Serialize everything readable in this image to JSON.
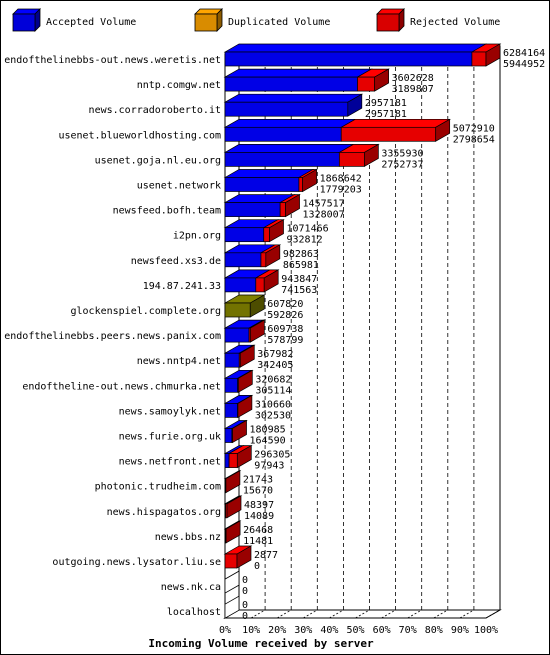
{
  "chart_data": {
    "type": "bar",
    "orientation": "horizontal",
    "stacked": true,
    "xlabel": "Incoming Volume received by server",
    "x_ticks": [
      "0%",
      "10%",
      "20%",
      "30%",
      "40%",
      "50%",
      "60%",
      "70%",
      "80%",
      "90%",
      "100%"
    ],
    "xlim": [
      0,
      6284164
    ],
    "grid": "vertical-dashed",
    "legend_position": "top",
    "legend": [
      {
        "key": "accepted",
        "label": "Accepted Volume",
        "color": "#0000ff"
      },
      {
        "key": "duplicated",
        "label": "Duplicated Volume",
        "color": "#ffa500"
      },
      {
        "key": "rejected",
        "label": "Rejected Volume",
        "color": "#ff0000"
      }
    ],
    "categories": [
      "endofthelinebbs-out.news.weretis.net",
      "nntp.comgw.net",
      "news.corradoroberto.it",
      "usenet.blueworldhosting.com",
      "usenet.goja.nl.eu.org",
      "usenet.network",
      "newsfeed.bofh.team",
      "i2pn.org",
      "newsfeed.xs3.de",
      "194.87.241.33",
      "glockenspiel.complete.org",
      "endofthelinebbs.peers.news.panix.com",
      "news.nntp4.net",
      "endoftheline-out.news.chmurka.net",
      "news.samoylyk.net",
      "news.furie.org.uk",
      "news.netfront.net",
      "photonic.trudheim.com",
      "news.hispagatos.org",
      "news.bbs.nz",
      "outgoing.news.lysator.liu.se",
      "news.nk.ca",
      "localhost"
    ],
    "total_labels": [
      "6284164",
      "3602628",
      "2957181",
      "5072910",
      "3355930",
      "1868642",
      "1457517",
      "1071466",
      "982863",
      "943847",
      "607820",
      "609738",
      "367982",
      "320682",
      "310660",
      "180985",
      "296305",
      "21743",
      "48397",
      "26468",
      "2877",
      "0",
      "0"
    ],
    "accepted_labels": [
      "5944952",
      "3189807",
      "2957181",
      "2798654",
      "2752737",
      "1779203",
      "1328007",
      "932812",
      "865981",
      "741563",
      "592826",
      "578799",
      "342405",
      "305114",
      "302530",
      "164590",
      "97943",
      "15670",
      "14089",
      "11481",
      "0",
      "0",
      "0"
    ],
    "series": [
      {
        "key": "accepted",
        "values": [
          5944952,
          3189807,
          2957181,
          2798654,
          2752737,
          1779203,
          1328007,
          932812,
          865981,
          741563,
          0,
          578799,
          342405,
          305114,
          302530,
          164590,
          97943,
          0,
          0,
          0,
          0,
          0,
          0
        ]
      },
      {
        "key": "duplicated",
        "values": [
          0,
          0,
          0,
          0,
          0,
          0,
          0,
          0,
          0,
          0,
          0,
          0,
          0,
          0,
          0,
          0,
          0,
          0,
          0,
          11481,
          0,
          0,
          0
        ]
      },
      {
        "key": "rejected",
        "values": [
          339212,
          412821,
          0,
          2274256,
          603193,
          89439,
          129510,
          138654,
          116882,
          202284,
          0,
          30939,
          25577,
          15568,
          8130,
          16395,
          198362,
          6073,
          34308,
          14987,
          2877,
          0,
          0
        ]
      },
      {
        "key": "mixed",
        "values": [
          0,
          0,
          0,
          0,
          0,
          0,
          0,
          0,
          0,
          0,
          607820,
          0,
          0,
          0,
          0,
          0,
          0,
          15670,
          14089,
          0,
          0,
          0,
          0
        ]
      }
    ]
  }
}
